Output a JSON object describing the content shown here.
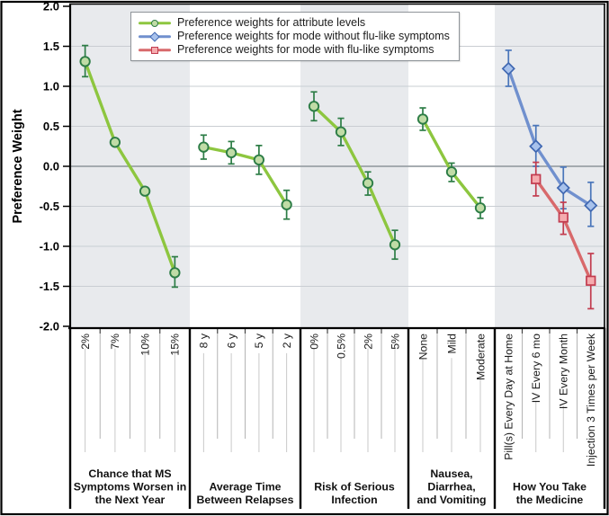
{
  "chart_data": {
    "type": "line",
    "title": "",
    "ylabel": "Preference Weight",
    "ylim": [
      -2.0,
      2.0
    ],
    "yticks": [
      "2.0",
      "1.5",
      "1.0",
      "0.5",
      "0.0",
      "-0.5",
      "-1.0",
      "-1.5",
      "-2.0"
    ],
    "grid": "horizontal",
    "legend_position": "top-left-inside",
    "colors": {
      "band": "#e8eaed",
      "grid": "#c9cdd2",
      "zero": "#9aa0a6",
      "axis": "#000000",
      "background": "#ffffff"
    },
    "series_defs": [
      {
        "id": "attribute_levels",
        "label": "Preference weights for attribute levels",
        "marker": "circle",
        "line_color": "#8dc63f",
        "marker_fill": "#c0dca6",
        "marker_stroke": "#2d7d46",
        "error_color": "#2d7d46"
      },
      {
        "id": "mode_without_flu",
        "label": "Preference weights for mode without flu-like symptoms",
        "marker": "diamond",
        "line_color": "#7090ce",
        "marker_fill": "#a8c2ec",
        "marker_stroke": "#3f67b1",
        "error_color": "#4a76ba"
      },
      {
        "id": "mode_with_flu",
        "label": "Preference weights for mode with flu-like symptoms",
        "marker": "square",
        "line_color": "#d8696b",
        "marker_fill": "#f5abae",
        "marker_stroke": "#c23c4f",
        "error_color": "#c23c4f"
      }
    ],
    "groups": [
      {
        "name": "Chance that MS Symptoms Worsen in the Next Year",
        "name_lines": [
          "Chance that MS",
          "Symptoms Worsen in",
          "the Next Year"
        ],
        "shaded": true,
        "levels": [
          "2%",
          "7%",
          "10%",
          "15%"
        ],
        "series": [
          {
            "id": "attribute_levels",
            "points": [
              {
                "value": 1.31,
                "ci": [
                  1.12,
                  1.51
                ]
              },
              {
                "value": 0.3,
                "ci": null
              },
              {
                "value": -0.31,
                "ci": null
              },
              {
                "value": -1.33,
                "ci": [
                  -1.51,
                  -1.13
                ]
              }
            ]
          }
        ]
      },
      {
        "name": "Average Time Between Relapses",
        "name_lines": [
          "Average Time",
          "Between Relapses"
        ],
        "shaded": false,
        "levels": [
          "8 y",
          "6 y",
          "5 y",
          "2 y"
        ],
        "series": [
          {
            "id": "attribute_levels",
            "points": [
              {
                "value": 0.24,
                "ci": [
                  0.09,
                  0.39
                ]
              },
              {
                "value": 0.17,
                "ci": [
                  0.03,
                  0.31
                ]
              },
              {
                "value": 0.08,
                "ci": [
                  -0.1,
                  0.26
                ]
              },
              {
                "value": -0.48,
                "ci": [
                  -0.66,
                  -0.3
                ]
              }
            ]
          }
        ]
      },
      {
        "name": "Risk of Serious Infection",
        "name_lines": [
          "Risk of Serious",
          "Infection"
        ],
        "shaded": true,
        "levels": [
          "0%",
          "0.5%",
          "2%",
          "5%"
        ],
        "series": [
          {
            "id": "attribute_levels",
            "points": [
              {
                "value": 0.75,
                "ci": [
                  0.57,
                  0.93
                ]
              },
              {
                "value": 0.43,
                "ci": [
                  0.26,
                  0.6
                ]
              },
              {
                "value": -0.21,
                "ci": [
                  -0.36,
                  -0.07
                ]
              },
              {
                "value": -0.98,
                "ci": [
                  -1.16,
                  -0.8
                ]
              }
            ]
          }
        ]
      },
      {
        "name": "Nausea, Diarrhea, and Vomiting",
        "name_lines": [
          "Nausea,",
          "Diarrhea,",
          "and Vomiting"
        ],
        "shaded": false,
        "levels": [
          "None",
          "Mild",
          "Moderate"
        ],
        "series": [
          {
            "id": "attribute_levels",
            "points": [
              {
                "value": 0.59,
                "ci": [
                  0.45,
                  0.73
                ]
              },
              {
                "value": -0.07,
                "ci": [
                  -0.19,
                  0.04
                ]
              },
              {
                "value": -0.52,
                "ci": [
                  -0.65,
                  -0.39
                ]
              }
            ]
          }
        ]
      },
      {
        "name": "How You Take the Medicine",
        "name_lines": [
          "How You Take",
          "the Medicine"
        ],
        "shaded": true,
        "levels": [
          "Pill(s) Every Day at Home",
          "IV Every 6 mo",
          "IV Every Month",
          "Injection 3 Times per Week"
        ],
        "series": [
          {
            "id": "mode_without_flu",
            "points": [
              {
                "value": 1.22,
                "ci": [
                  1.0,
                  1.45
                ]
              },
              {
                "value": 0.25,
                "ci": [
                  0.0,
                  0.51
                ]
              },
              {
                "value": -0.27,
                "ci": [
                  -0.53,
                  -0.01
                ]
              },
              {
                "value": -0.49,
                "ci": [
                  -0.75,
                  -0.2
                ]
              }
            ]
          },
          {
            "id": "mode_with_flu",
            "points": [
              null,
              {
                "value": -0.16,
                "ci": [
                  -0.37,
                  0.05
                ]
              },
              {
                "value": -0.64,
                "ci": [
                  -0.85,
                  -0.45
                ]
              },
              {
                "value": -1.43,
                "ci": [
                  -1.78,
                  -1.09
                ]
              }
            ]
          }
        ]
      }
    ]
  }
}
